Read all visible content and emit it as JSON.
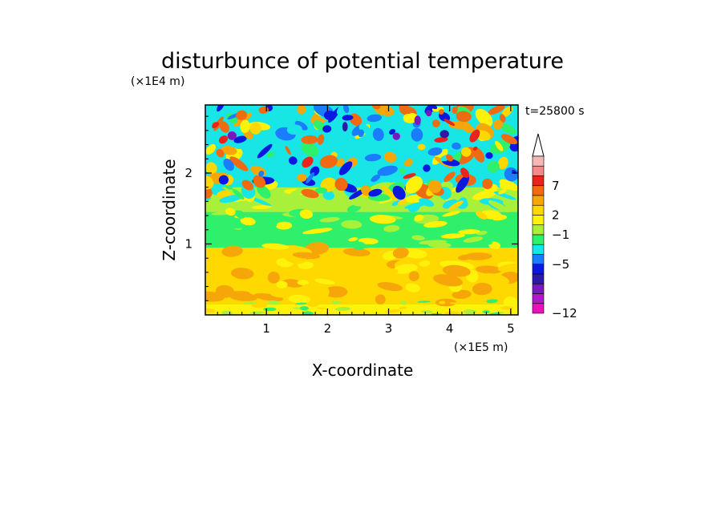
{
  "chart_data": {
    "type": "heatmap",
    "title": "disturbunce of potential temperature",
    "xlabel": "X-coordinate",
    "ylabel": "Z-coordinate",
    "x_unit": "(×1E5 m)",
    "y_unit": "(×1E4 m)",
    "time_label": "t=25800 s",
    "xlim": [
      0,
      5.12
    ],
    "ylim": [
      0,
      2.96
    ],
    "xticks": [
      "1",
      "2",
      "3",
      "4",
      "5"
    ],
    "yticks": [
      "1",
      "2"
    ],
    "xtick_values": [
      1,
      2,
      3,
      4,
      5
    ],
    "ytick_values": [
      1,
      2
    ],
    "colorbar": {
      "labels": [
        "7",
        "2",
        "−1",
        "−5",
        "−12"
      ],
      "colors": [
        "#f7b7b7",
        "#f28a8a",
        "#e8251a",
        "#ef6a10",
        "#f7a60a",
        "#ffd800",
        "#fff20a",
        "#a8f03a",
        "#2ef06a",
        "#18e6e6",
        "#1a7cff",
        "#0a18e0",
        "#2a1aa6",
        "#7a18c0",
        "#b01ac6",
        "#e614b8",
        "#ffffff"
      ]
    },
    "layers": [
      {
        "z_range": [
          0.0,
          0.15
        ],
        "value": 2,
        "description_color": "#fff20a"
      },
      {
        "z_range": [
          0.15,
          0.95
        ],
        "value": 3,
        "description_color": "#ffd800"
      },
      {
        "z_range": [
          0.95,
          1.45
        ],
        "value": 0,
        "description_color": "#2ef06a"
      },
      {
        "z_range": [
          1.45,
          1.8
        ],
        "value": 1,
        "description_color": "#a8f03a"
      },
      {
        "z_range": [
          1.8,
          2.96
        ],
        "value": 0,
        "description_color": "#18e6e6"
      }
    ]
  }
}
